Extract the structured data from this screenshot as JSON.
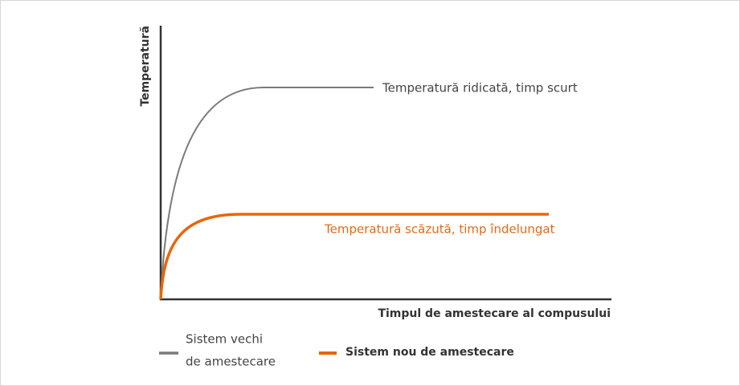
{
  "axes": {
    "y_label": "Temperatură",
    "x_label": "Timpul de amestecare al compusului"
  },
  "annotations": {
    "old_curve": "Temperatură ridicată, timp scurt",
    "new_curve": "Temperatură scăzută, timp îndelungat"
  },
  "legend": {
    "old": {
      "line1": "Sistem vechi",
      "line2": "de amestecare"
    },
    "new": "Sistem nou de amestecare"
  }
}
